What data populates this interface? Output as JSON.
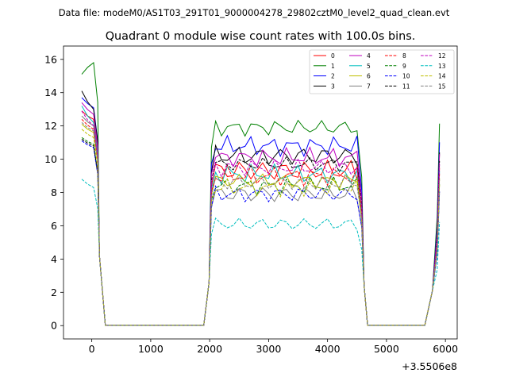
{
  "chart_data": {
    "type": "line",
    "suptitle": "Data file: modeM0/AS1T03_291T01_9000004278_29802cztM0_level2_quad_clean.evt",
    "title": "Quadrant 0 module wise count rates with 100.0s bins.",
    "xlabel": "",
    "ylabel": "",
    "x_offset_label": "+3.5506e8",
    "xlim": [
      -480,
      6200
    ],
    "ylim": [
      -0.8,
      16.8
    ],
    "x_ticks": [
      0,
      1000,
      2000,
      3000,
      4000,
      5000,
      6000
    ],
    "x_tick_labels": [
      "0",
      "1000",
      "2000",
      "3000",
      "4000",
      "5000",
      "6000"
    ],
    "y_ticks": [
      0,
      2,
      4,
      6,
      8,
      10,
      12,
      14,
      16
    ],
    "y_tick_labels": [
      "0",
      "2",
      "4",
      "6",
      "8",
      "10",
      "12",
      "14",
      "16"
    ],
    "grid": false,
    "legend_position": "top-right",
    "legend_columns": 4,
    "series": [
      {
        "name": "0",
        "color": "#ff0000",
        "dash": "solid",
        "start": 12.9,
        "early": 12.4,
        "plateau": 9.3,
        "amp": 0.5,
        "phase": 0.3
      },
      {
        "name": "1",
        "color": "#008000",
        "dash": "solid",
        "start": 15.1,
        "early": 15.8,
        "plateau": 11.9,
        "amp": 0.35,
        "phase": 1.1
      },
      {
        "name": "2",
        "color": "#0000ff",
        "dash": "solid",
        "start": 13.7,
        "early": 13.1,
        "plateau": 10.8,
        "amp": 0.4,
        "phase": 2.0
      },
      {
        "name": "3",
        "color": "#000000",
        "dash": "solid",
        "start": 14.1,
        "early": 13.0,
        "plateau": 10.2,
        "amp": 0.45,
        "phase": 0.7
      },
      {
        "name": "4",
        "color": "#bf00bf",
        "dash": "solid",
        "start": 13.4,
        "early": 12.7,
        "plateau": 10.1,
        "amp": 0.4,
        "phase": 2.6
      },
      {
        "name": "5",
        "color": "#00bfbf",
        "dash": "solid",
        "start": 13.2,
        "early": 12.2,
        "plateau": 9.1,
        "amp": 0.4,
        "phase": 1.5
      },
      {
        "name": "6",
        "color": "#bfbf00",
        "dash": "solid",
        "start": 12.1,
        "early": 11.6,
        "plateau": 8.7,
        "amp": 0.35,
        "phase": 3.1
      },
      {
        "name": "7",
        "color": "#808080",
        "dash": "solid",
        "start": 12.6,
        "early": 12.0,
        "plateau": 7.9,
        "amp": 0.4,
        "phase": 0.2
      },
      {
        "name": "8",
        "color": "#ff0000",
        "dash": "dashed",
        "start": 12.4,
        "early": 11.8,
        "plateau": 9.0,
        "amp": 0.4,
        "phase": 1.9
      },
      {
        "name": "9",
        "color": "#008000",
        "dash": "dashed",
        "start": 11.3,
        "early": 10.9,
        "plateau": 8.4,
        "amp": 0.35,
        "phase": 2.3
      },
      {
        "name": "10",
        "color": "#0000ff",
        "dash": "dashed",
        "start": 11.1,
        "early": 10.7,
        "plateau": 7.9,
        "amp": 0.35,
        "phase": 0.9
      },
      {
        "name": "11",
        "color": "#000000",
        "dash": "dashed",
        "start": 11.2,
        "early": 10.8,
        "plateau": 9.7,
        "amp": 0.3,
        "phase": 2.8
      },
      {
        "name": "12",
        "color": "#bf00bf",
        "dash": "dashed",
        "start": 12.9,
        "early": 12.0,
        "plateau": 9.5,
        "amp": 0.35,
        "phase": 1.3
      },
      {
        "name": "13",
        "color": "#00bfbf",
        "dash": "dashed",
        "start": 8.8,
        "early": 8.3,
        "plateau": 6.1,
        "amp": 0.3,
        "phase": 0.5
      },
      {
        "name": "14",
        "color": "#bfbf00",
        "dash": "dashed",
        "start": 11.8,
        "early": 11.3,
        "plateau": 8.3,
        "amp": 0.35,
        "phase": 2.1
      },
      {
        "name": "15",
        "color": "#808080",
        "dash": "dashed",
        "start": 12.2,
        "early": 11.7,
        "plateau": 8.6,
        "amp": 0.35,
        "phase": 3.4
      }
    ]
  }
}
